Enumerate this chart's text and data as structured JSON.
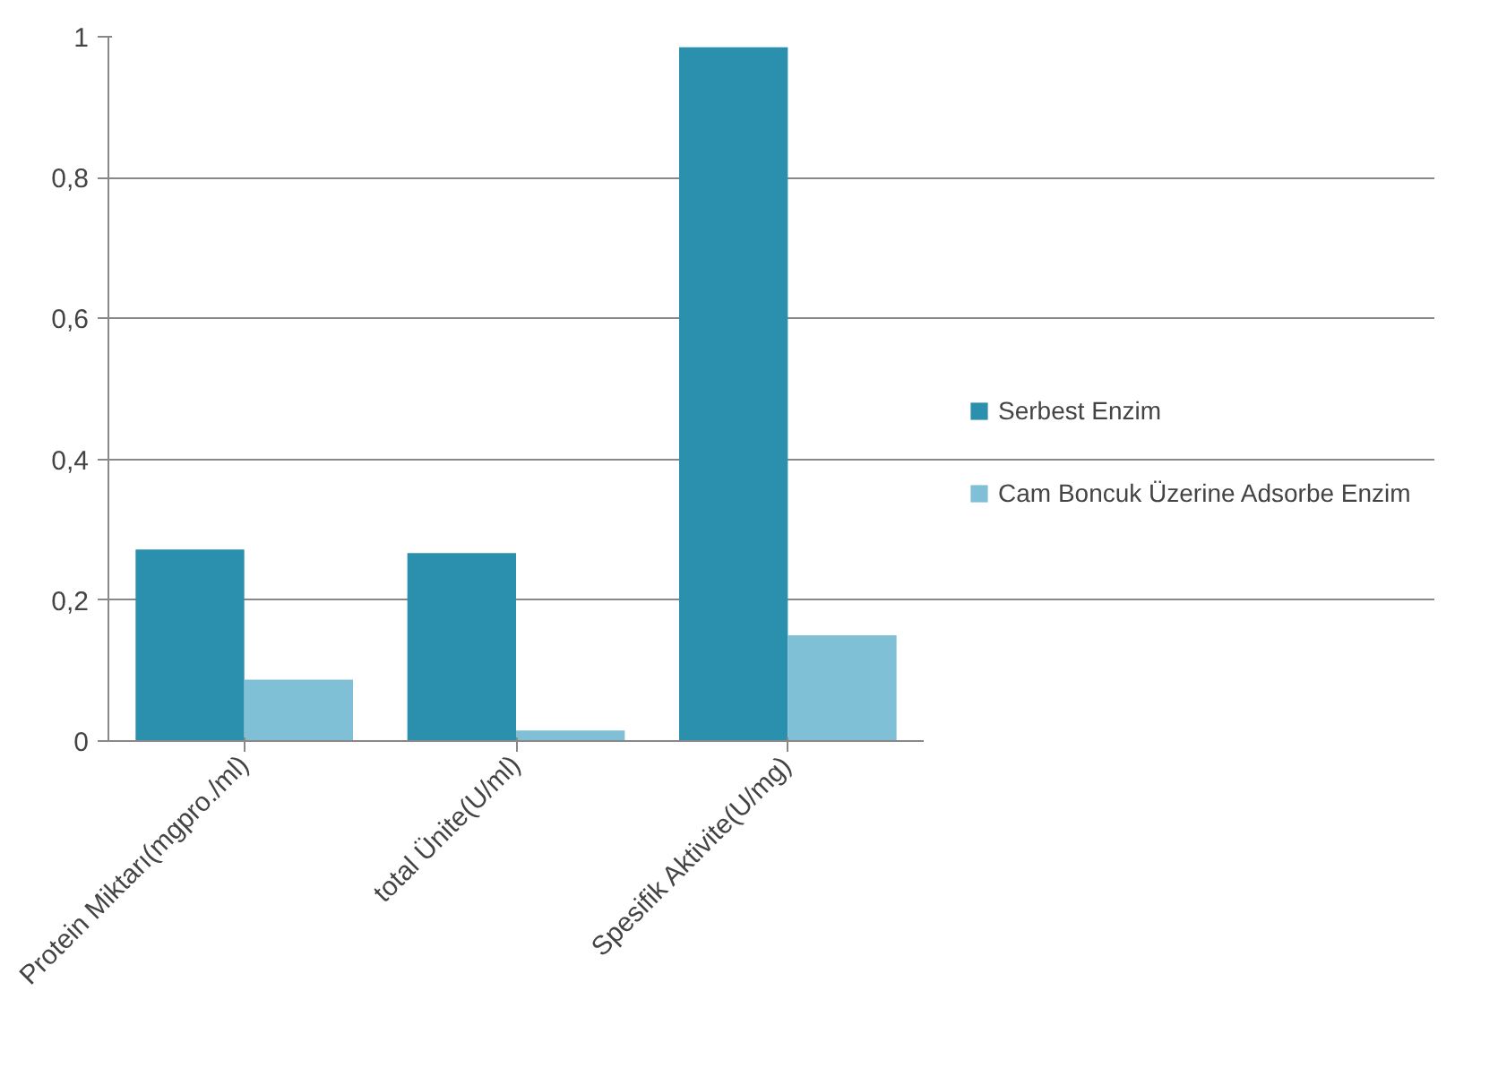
{
  "chart_data": {
    "type": "bar",
    "categories": [
      "Protein Miktarı(mgpro./ml)",
      "total Ünite(U/ml)",
      "Spesifik Aktivite(U/mg)"
    ],
    "series": [
      {
        "name": "Serbest Enzim",
        "color": "#2b8fae",
        "values": [
          0.272,
          0.267,
          0.985
        ]
      },
      {
        "name": "Cam Boncuk Üzerine Adsorbe Enzim",
        "color": "#7fc0d6",
        "values": [
          0.087,
          0.015,
          0.15
        ]
      }
    ],
    "ylim": [
      0,
      1
    ],
    "yticks": [
      0,
      {
        "value": 0.2,
        "label": "0,2"
      },
      {
        "value": 0.4,
        "label": "0,4"
      },
      {
        "value": 0.6,
        "label": "0,6"
      },
      {
        "value": 0.8,
        "label": "0,8"
      },
      1
    ],
    "grid": "y",
    "legend": "right"
  }
}
